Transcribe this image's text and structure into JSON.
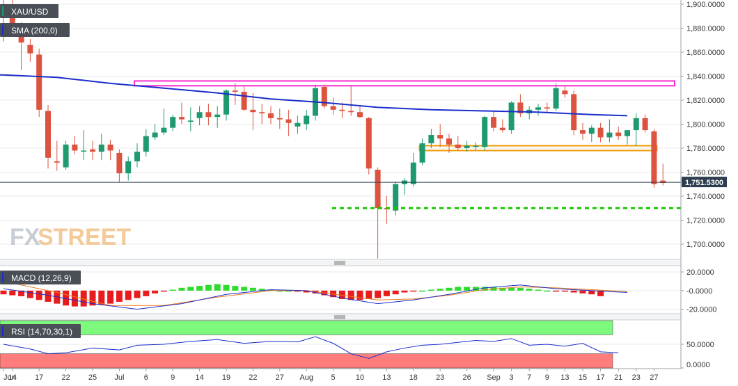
{
  "symbol": "XAU/USD",
  "indicators": {
    "sma": {
      "label": "SMA (200,0)",
      "color": "#1a2ecc"
    },
    "macd": {
      "label": "MACD (12,26,9)"
    },
    "rsi": {
      "label": "RSI (14,70,30,1)"
    }
  },
  "watermark": {
    "fx": "FX",
    "street": "STREET"
  },
  "last_price_label": "1,751.5300",
  "colors": {
    "up": "#1e9a6e",
    "down": "#dc5340",
    "sma": "#1a2ecc",
    "support": "#19c800",
    "resistance": "#ff2ad0",
    "zone": "#f09a00"
  },
  "chart_data": [
    {
      "type": "candlestick",
      "title": "XAU/USD",
      "ylim": [
        1687,
        1904
      ],
      "y_ticks": [
        "1,900.0000",
        "1,880.0000",
        "1,860.0000",
        "1,840.0000",
        "1,820.0000",
        "1,800.0000",
        "1,780.0000",
        "1,760.0000",
        "1,740.0000",
        "1,720.0000",
        "1,700.0000"
      ],
      "y_tick_values": [
        1900,
        1880,
        1860,
        1840,
        1820,
        1800,
        1780,
        1760,
        1740,
        1720,
        1700
      ],
      "x_ticks": [
        {
          "label": "Jun",
          "i": 0
        },
        {
          "label": "14",
          "i": 1
        },
        {
          "label": "17",
          "i": 4
        },
        {
          "label": "22",
          "i": 7
        },
        {
          "label": "25",
          "i": 10
        },
        {
          "label": "Jul",
          "i": 13
        },
        {
          "label": "6",
          "i": 16
        },
        {
          "label": "9",
          "i": 19
        },
        {
          "label": "14",
          "i": 22
        },
        {
          "label": "19",
          "i": 25
        },
        {
          "label": "22",
          "i": 28
        },
        {
          "label": "27",
          "i": 31
        },
        {
          "label": "Aug",
          "i": 34
        },
        {
          "label": "5",
          "i": 37
        },
        {
          "label": "10",
          "i": 40
        },
        {
          "label": "13",
          "i": 43
        },
        {
          "label": "18",
          "i": 46
        },
        {
          "label": "23",
          "i": 49
        },
        {
          "label": "26",
          "i": 52
        },
        {
          "label": "Sep",
          "i": 55
        },
        {
          "label": "3",
          "i": 57
        },
        {
          "label": "7",
          "i": 59
        },
        {
          "label": "9",
          "i": 61
        },
        {
          "label": "13",
          "i": 63
        },
        {
          "label": "15",
          "i": 65
        },
        {
          "label": "17",
          "i": 67
        },
        {
          "label": "21",
          "i": 69
        },
        {
          "label": "23",
          "i": 71
        },
        {
          "label": "27",
          "i": 73
        }
      ],
      "candles": [
        {
          "o": 1893,
          "h": 1905,
          "l": 1869,
          "c": 1898
        },
        {
          "o": 1896,
          "h": 1904,
          "l": 1878,
          "c": 1882
        },
        {
          "o": 1882,
          "h": 1885,
          "l": 1845,
          "c": 1868
        },
        {
          "o": 1866,
          "h": 1871,
          "l": 1852,
          "c": 1859
        },
        {
          "o": 1858,
          "h": 1863,
          "l": 1806,
          "c": 1812
        },
        {
          "o": 1811,
          "h": 1816,
          "l": 1763,
          "c": 1772
        },
        {
          "o": 1769,
          "h": 1786,
          "l": 1761,
          "c": 1768
        },
        {
          "o": 1764,
          "h": 1786,
          "l": 1762,
          "c": 1783
        },
        {
          "o": 1783,
          "h": 1790,
          "l": 1775,
          "c": 1778
        },
        {
          "o": 1778,
          "h": 1795,
          "l": 1770,
          "c": 1778
        },
        {
          "o": 1779,
          "h": 1786,
          "l": 1770,
          "c": 1777
        },
        {
          "o": 1777,
          "h": 1792,
          "l": 1770,
          "c": 1783
        },
        {
          "o": 1783,
          "h": 1787,
          "l": 1770,
          "c": 1778
        },
        {
          "o": 1776,
          "h": 1779,
          "l": 1752,
          "c": 1759
        },
        {
          "o": 1759,
          "h": 1773,
          "l": 1753,
          "c": 1769
        },
        {
          "o": 1769,
          "h": 1784,
          "l": 1764,
          "c": 1777
        },
        {
          "o": 1777,
          "h": 1796,
          "l": 1773,
          "c": 1790
        },
        {
          "o": 1789,
          "h": 1800,
          "l": 1787,
          "c": 1793
        },
        {
          "o": 1793,
          "h": 1813,
          "l": 1791,
          "c": 1797
        },
        {
          "o": 1797,
          "h": 1808,
          "l": 1794,
          "c": 1806
        },
        {
          "o": 1806,
          "h": 1818,
          "l": 1800,
          "c": 1804
        },
        {
          "o": 1802,
          "h": 1814,
          "l": 1794,
          "c": 1803
        },
        {
          "o": 1805,
          "h": 1815,
          "l": 1799,
          "c": 1810
        },
        {
          "o": 1810,
          "h": 1817,
          "l": 1799,
          "c": 1806
        },
        {
          "o": 1806,
          "h": 1815,
          "l": 1797,
          "c": 1808
        },
        {
          "o": 1808,
          "h": 1829,
          "l": 1803,
          "c": 1828
        },
        {
          "o": 1828,
          "h": 1834,
          "l": 1816,
          "c": 1827
        },
        {
          "o": 1827,
          "h": 1832,
          "l": 1811,
          "c": 1812
        },
        {
          "o": 1812,
          "h": 1826,
          "l": 1795,
          "c": 1810
        },
        {
          "o": 1810,
          "h": 1817,
          "l": 1800,
          "c": 1809
        },
        {
          "o": 1809,
          "h": 1815,
          "l": 1800,
          "c": 1805
        },
        {
          "o": 1805,
          "h": 1813,
          "l": 1796,
          "c": 1804
        },
        {
          "o": 1804,
          "h": 1812,
          "l": 1790,
          "c": 1801
        },
        {
          "o": 1798,
          "h": 1807,
          "l": 1792,
          "c": 1801
        },
        {
          "o": 1800,
          "h": 1812,
          "l": 1795,
          "c": 1807
        },
        {
          "o": 1807,
          "h": 1833,
          "l": 1803,
          "c": 1830
        },
        {
          "o": 1831,
          "h": 1833,
          "l": 1813,
          "c": 1815
        },
        {
          "o": 1815,
          "h": 1822,
          "l": 1808,
          "c": 1812
        },
        {
          "o": 1812,
          "h": 1818,
          "l": 1805,
          "c": 1811
        },
        {
          "o": 1811,
          "h": 1832,
          "l": 1807,
          "c": 1810
        },
        {
          "o": 1810,
          "h": 1815,
          "l": 1805,
          "c": 1806
        },
        {
          "o": 1805,
          "h": 1806,
          "l": 1758,
          "c": 1763
        },
        {
          "o": 1762,
          "h": 1764,
          "l": 1688,
          "c": 1730
        },
        {
          "o": 1730,
          "h": 1740,
          "l": 1717,
          "c": 1729
        },
        {
          "o": 1728,
          "h": 1752,
          "l": 1724,
          "c": 1750
        },
        {
          "o": 1750,
          "h": 1755,
          "l": 1741,
          "c": 1753
        },
        {
          "o": 1750,
          "h": 1776,
          "l": 1748,
          "c": 1768
        },
        {
          "o": 1768,
          "h": 1788,
          "l": 1766,
          "c": 1784
        },
        {
          "o": 1784,
          "h": 1796,
          "l": 1780,
          "c": 1791
        },
        {
          "o": 1791,
          "h": 1800,
          "l": 1781,
          "c": 1788
        },
        {
          "o": 1788,
          "h": 1792,
          "l": 1776,
          "c": 1783
        },
        {
          "o": 1783,
          "h": 1790,
          "l": 1778,
          "c": 1780
        },
        {
          "o": 1780,
          "h": 1786,
          "l": 1777,
          "c": 1782
        },
        {
          "o": 1781,
          "h": 1785,
          "l": 1778,
          "c": 1782
        },
        {
          "o": 1781,
          "h": 1807,
          "l": 1778,
          "c": 1806
        },
        {
          "o": 1806,
          "h": 1811,
          "l": 1794,
          "c": 1797
        },
        {
          "o": 1797,
          "h": 1804,
          "l": 1793,
          "c": 1795
        },
        {
          "o": 1795,
          "h": 1819,
          "l": 1792,
          "c": 1818
        },
        {
          "o": 1818,
          "h": 1825,
          "l": 1806,
          "c": 1809
        },
        {
          "o": 1809,
          "h": 1815,
          "l": 1804,
          "c": 1812
        },
        {
          "o": 1812,
          "h": 1817,
          "l": 1807,
          "c": 1814
        },
        {
          "o": 1814,
          "h": 1818,
          "l": 1810,
          "c": 1813
        },
        {
          "o": 1813,
          "h": 1834,
          "l": 1811,
          "c": 1830
        },
        {
          "o": 1828,
          "h": 1832,
          "l": 1822,
          "c": 1825
        },
        {
          "o": 1825,
          "h": 1828,
          "l": 1791,
          "c": 1795
        },
        {
          "o": 1795,
          "h": 1801,
          "l": 1787,
          "c": 1792
        },
        {
          "o": 1792,
          "h": 1799,
          "l": 1785,
          "c": 1797
        },
        {
          "o": 1797,
          "h": 1801,
          "l": 1785,
          "c": 1789
        },
        {
          "o": 1789,
          "h": 1804,
          "l": 1785,
          "c": 1793
        },
        {
          "o": 1793,
          "h": 1798,
          "l": 1787,
          "c": 1790
        },
        {
          "o": 1790,
          "h": 1794,
          "l": 1783,
          "c": 1795
        },
        {
          "o": 1795,
          "h": 1809,
          "l": 1782,
          "c": 1805
        },
        {
          "o": 1805,
          "h": 1808,
          "l": 1793,
          "c": 1795
        },
        {
          "o": 1794,
          "h": 1796,
          "l": 1747,
          "c": 1750
        },
        {
          "o": 1753,
          "h": 1767,
          "l": 1749,
          "c": 1751
        }
      ],
      "sma_points": [
        [
          0,
          1841
        ],
        [
          6,
          1839
        ],
        [
          12,
          1834
        ],
        [
          18,
          1830
        ],
        [
          24,
          1826
        ],
        [
          30,
          1821
        ],
        [
          36,
          1818
        ],
        [
          42,
          1814
        ],
        [
          48,
          1812
        ],
        [
          54,
          1811
        ],
        [
          60,
          1810
        ],
        [
          66,
          1808
        ],
        [
          70,
          1807
        ]
      ],
      "current_price": 1751.53,
      "rectangles": [
        {
          "name": "resistance-box",
          "i0": 15,
          "i1": 75,
          "y0": 1832,
          "y1": 1836,
          "color": "resistance"
        },
        {
          "name": "zone-box",
          "i0": 47,
          "i1": 73,
          "y0": 1778,
          "y1": 1782,
          "color": "zone"
        }
      ],
      "support_line": {
        "i0": 40,
        "i1": 78,
        "y": 1730
      }
    },
    {
      "type": "bar",
      "title": "MACD (12,26,9)",
      "ylim": [
        -24,
        26
      ],
      "y_ticks": [
        "20.0000",
        "-0.0000",
        "-20.0000"
      ],
      "y_tick_values": [
        20,
        0,
        -20
      ],
      "histogram": [
        -4,
        -5,
        -6,
        -8,
        -10,
        -12,
        -14,
        -16,
        -17,
        -17,
        -16,
        -15,
        -14,
        -12,
        -10,
        -8,
        -6,
        -3,
        -1,
        1,
        3,
        4,
        5,
        6,
        7,
        6,
        5,
        4,
        3,
        2,
        1,
        0,
        0,
        -1,
        -2,
        -3,
        -5,
        -7,
        -9,
        -10,
        -10,
        -9,
        -8,
        -6,
        -4,
        -2,
        -1,
        0,
        1,
        2,
        3,
        4,
        4,
        4,
        4,
        4,
        3,
        3,
        3,
        2,
        1,
        0,
        -1,
        -1,
        -2,
        -3,
        -4,
        -6
      ],
      "macd_line": [
        [
          0,
          2
        ],
        [
          5,
          -5
        ],
        [
          10,
          -14
        ],
        [
          15,
          -20
        ],
        [
          20,
          -14
        ],
        [
          25,
          -4
        ],
        [
          30,
          1
        ],
        [
          34,
          0
        ],
        [
          38,
          -8
        ],
        [
          42,
          -14
        ],
        [
          46,
          -10
        ],
        [
          50,
          -4
        ],
        [
          54,
          3
        ],
        [
          58,
          6
        ],
        [
          62,
          2
        ],
        [
          66,
          0
        ],
        [
          70,
          -2
        ]
      ],
      "signal_line": [
        [
          0,
          10
        ],
        [
          6,
          -2
        ],
        [
          12,
          -16
        ],
        [
          18,
          -16
        ],
        [
          24,
          -7
        ],
        [
          30,
          0
        ],
        [
          34,
          0
        ],
        [
          38,
          -5
        ],
        [
          42,
          -10
        ],
        [
          46,
          -9
        ],
        [
          50,
          -5
        ],
        [
          54,
          1
        ],
        [
          58,
          4
        ],
        [
          62,
          3
        ],
        [
          66,
          1
        ],
        [
          70,
          -1
        ]
      ]
    },
    {
      "type": "line",
      "title": "RSI (14,70,30,1)",
      "ylim": [
        0,
        100
      ],
      "y_ticks": [
        "50.0000",
        "0.0000"
      ],
      "y_tick_values": [
        50,
        0
      ],
      "overbought": 70,
      "oversold": 30,
      "rsi_line": [
        [
          0,
          50
        ],
        [
          3,
          40
        ],
        [
          5,
          30
        ],
        [
          7,
          32
        ],
        [
          10,
          42
        ],
        [
          13,
          38
        ],
        [
          15,
          48
        ],
        [
          18,
          50
        ],
        [
          21,
          56
        ],
        [
          24,
          60
        ],
        [
          27,
          52
        ],
        [
          30,
          56
        ],
        [
          33,
          55
        ],
        [
          35,
          66
        ],
        [
          37,
          52
        ],
        [
          39,
          30
        ],
        [
          41,
          20
        ],
        [
          43,
          34
        ],
        [
          45,
          42
        ],
        [
          47,
          48
        ],
        [
          49,
          50
        ],
        [
          51,
          54
        ],
        [
          53,
          58
        ],
        [
          55,
          56
        ],
        [
          57,
          62
        ],
        [
          59,
          48
        ],
        [
          61,
          50
        ],
        [
          63,
          46
        ],
        [
          65,
          52
        ],
        [
          67,
          34
        ],
        [
          69,
          32
        ]
      ]
    }
  ]
}
